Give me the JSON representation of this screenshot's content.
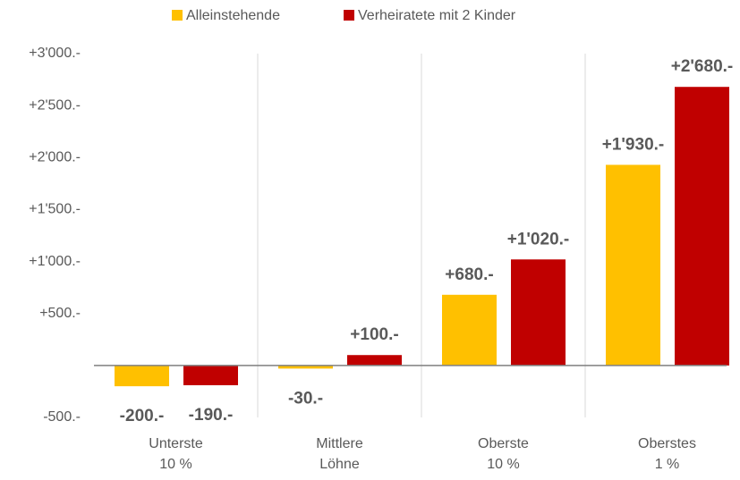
{
  "chart_data": {
    "type": "bar",
    "categories": [
      [
        "Unterste",
        "10 %"
      ],
      [
        "Mittlere",
        "Löhne"
      ],
      [
        "Oberste",
        "10 %"
      ],
      [
        "Oberstes",
        "1 %"
      ]
    ],
    "series": [
      {
        "name": "Alleinstehende",
        "color": "#ffc000",
        "values": [
          -200,
          -30,
          680,
          1930
        ],
        "value_labels": [
          "-200.-",
          "-30.-",
          "+680.-",
          "+1'930.-"
        ]
      },
      {
        "name": "Verheiratete mit 2 Kinder",
        "color": "#c00000",
        "values": [
          -190,
          100,
          1020,
          2680
        ],
        "value_labels": [
          "-190.-",
          "+100.-",
          "+1'020.-",
          "+2'680.-"
        ]
      }
    ],
    "ylim": [
      -500,
      3000
    ],
    "yticks": [
      {
        "value": -500,
        "label": "-500.-"
      },
      {
        "value": 500,
        "label": "+500.-"
      },
      {
        "value": 1000,
        "label": "+1'000.-"
      },
      {
        "value": 1500,
        "label": "+1'500.-"
      },
      {
        "value": 2000,
        "label": "+2'000.-"
      },
      {
        "value": 2500,
        "label": "+2'500.-"
      },
      {
        "value": 3000,
        "label": "+3'000.-"
      }
    ],
    "grid": "x",
    "legend": "top"
  }
}
